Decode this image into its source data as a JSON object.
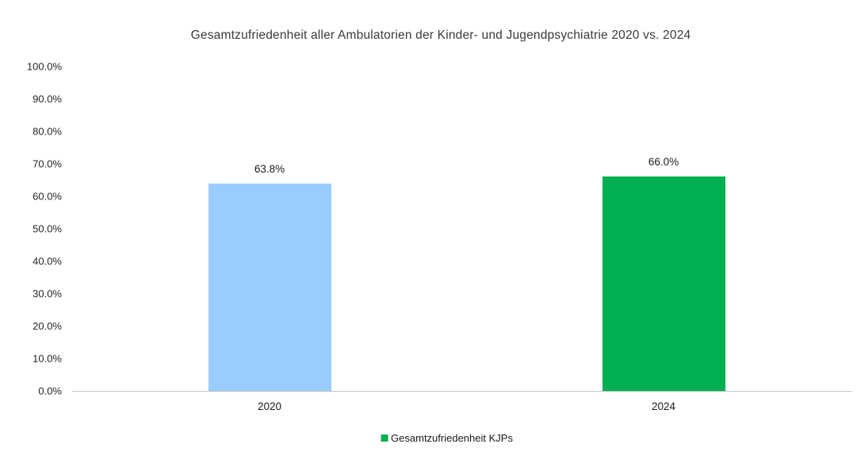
{
  "chart_data": {
    "type": "bar",
    "title": "Gesamtzufriedenheit aller Ambulatorien der Kinder- und Jugendpsychiatrie 2020 vs. 2024",
    "categories": [
      "2020",
      "2024"
    ],
    "series": [
      {
        "name": "Gesamtzufriedenheit KJPs",
        "values": [
          63.8,
          66.0
        ],
        "value_labels": [
          "63.8%",
          "66.0%"
        ],
        "bar_colors": [
          "#99CCFF",
          "#00B050"
        ]
      }
    ],
    "ylabel": "",
    "xlabel": "",
    "ylim": [
      0,
      100
    ],
    "y_ticks": [
      "100.0%",
      "90.0%",
      "80.0%",
      "70.0%",
      "60.0%",
      "50.0%",
      "40.0%",
      "30.0%",
      "20.0%",
      "10.0%",
      "0.0%"
    ],
    "grid": "off",
    "legend": {
      "position": "bottom",
      "entries": [
        {
          "label": "Gesamtzufriedenheit KJPs",
          "color": "#00B050"
        }
      ]
    }
  },
  "colors": {
    "axis_line": "#C6C6C6",
    "title_text": "#3a3a3a",
    "tick_text": "#262626"
  }
}
